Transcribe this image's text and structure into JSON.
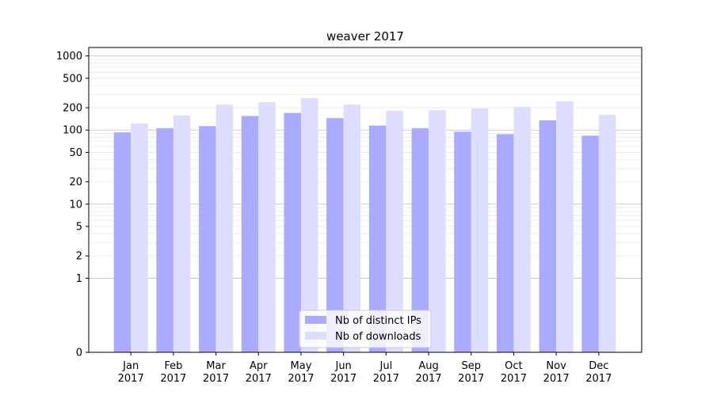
{
  "chart_data": {
    "type": "bar",
    "title": "weaver 2017",
    "xlabel": "",
    "ylabel": "",
    "yscale": "symlog",
    "ylim": [
      0,
      1300
    ],
    "yticks": [
      {
        "value": 0,
        "label": "0"
      },
      {
        "value": 1,
        "label": "1"
      },
      {
        "value": 2,
        "label": "2"
      },
      {
        "value": 5,
        "label": "5"
      },
      {
        "value": 10,
        "label": "10"
      },
      {
        "value": 20,
        "label": "20"
      },
      {
        "value": 50,
        "label": "50"
      },
      {
        "value": 100,
        "label": "100"
      },
      {
        "value": 200,
        "label": "200"
      },
      {
        "value": 500,
        "label": "500"
      },
      {
        "value": 1000,
        "label": "1000"
      }
    ],
    "categories": [
      {
        "month": "Jan",
        "year": "2017"
      },
      {
        "month": "Feb",
        "year": "2017"
      },
      {
        "month": "Mar",
        "year": "2017"
      },
      {
        "month": "Apr",
        "year": "2017"
      },
      {
        "month": "May",
        "year": "2017"
      },
      {
        "month": "Jun",
        "year": "2017"
      },
      {
        "month": "Jul",
        "year": "2017"
      },
      {
        "month": "Aug",
        "year": "2017"
      },
      {
        "month": "Sep",
        "year": "2017"
      },
      {
        "month": "Oct",
        "year": "2017"
      },
      {
        "month": "Nov",
        "year": "2017"
      },
      {
        "month": "Dec",
        "year": "2017"
      }
    ],
    "series": [
      {
        "name": "Nb of distinct IPs",
        "color": "#aaaaff",
        "values": [
          93,
          106,
          113,
          155,
          170,
          145,
          115,
          106,
          95,
          88,
          135,
          84
        ]
      },
      {
        "name": "Nb of downloads",
        "color": "#ddddff",
        "values": [
          122,
          157,
          220,
          238,
          270,
          220,
          182,
          186,
          195,
          205,
          245,
          160
        ]
      }
    ],
    "grid": true,
    "legend": "bottom-center"
  }
}
